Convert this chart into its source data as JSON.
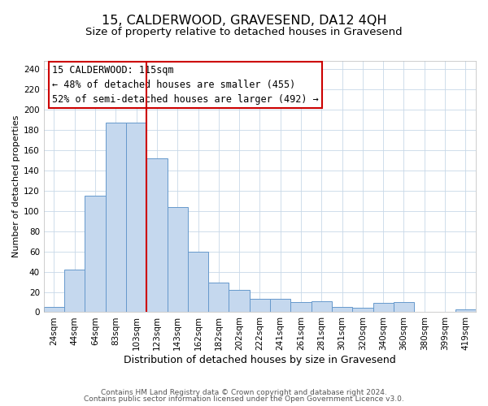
{
  "title": "15, CALDERWOOD, GRAVESEND, DA12 4QH",
  "subtitle": "Size of property relative to detached houses in Gravesend",
  "xlabel": "Distribution of detached houses by size in Gravesend",
  "ylabel": "Number of detached properties",
  "bar_labels": [
    "24sqm",
    "44sqm",
    "64sqm",
    "83sqm",
    "103sqm",
    "123sqm",
    "143sqm",
    "162sqm",
    "182sqm",
    "202sqm",
    "222sqm",
    "241sqm",
    "261sqm",
    "281sqm",
    "301sqm",
    "320sqm",
    "340sqm",
    "360sqm",
    "380sqm",
    "399sqm",
    "419sqm"
  ],
  "bar_values": [
    5,
    42,
    115,
    187,
    187,
    152,
    104,
    60,
    29,
    22,
    13,
    13,
    10,
    11,
    5,
    4,
    9,
    10,
    0,
    0,
    3
  ],
  "bar_color": "#c5d8ee",
  "bar_edge_color": "#6699cc",
  "vline_x_index": 4.5,
  "vline_color": "#cc0000",
  "annotation_line1": "15 CALDERWOOD: 115sqm",
  "annotation_line2": "← 48% of detached houses are smaller (455)",
  "annotation_line3": "52% of semi-detached houses are larger (492) →",
  "annotation_box_edge_color": "#cc0000",
  "ylim": [
    0,
    248
  ],
  "yticks": [
    0,
    20,
    40,
    60,
    80,
    100,
    120,
    140,
    160,
    180,
    200,
    220,
    240
  ],
  "footer_line1": "Contains HM Land Registry data © Crown copyright and database right 2024.",
  "footer_line2": "Contains public sector information licensed under the Open Government Licence v3.0.",
  "bg_color": "#ffffff",
  "grid_color": "#c8d8e8",
  "title_fontsize": 11.5,
  "subtitle_fontsize": 9.5,
  "xlabel_fontsize": 9,
  "ylabel_fontsize": 8,
  "tick_fontsize": 7.5,
  "footer_fontsize": 6.5,
  "annotation_fontsize": 8.5
}
